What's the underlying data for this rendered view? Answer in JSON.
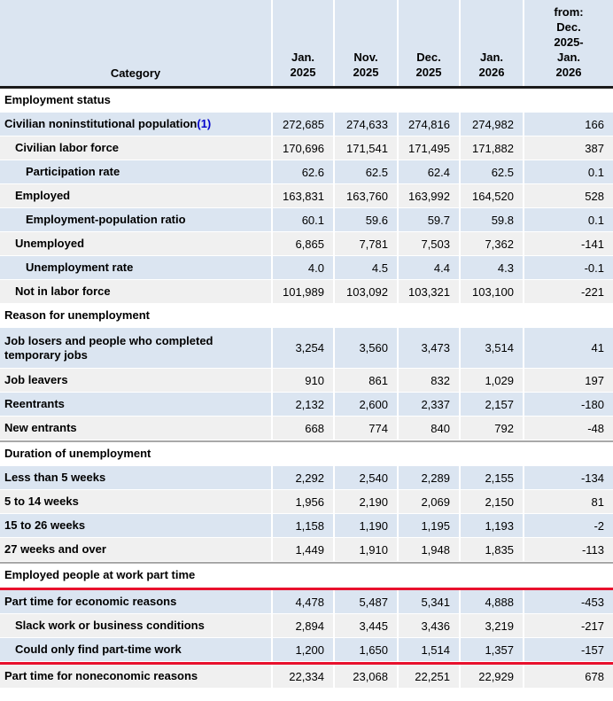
{
  "colors": {
    "row_blue": "#dbe5f1",
    "row_gray": "#f0f0f0",
    "header_bg": "#dbe5f1",
    "annotation_red": "#e8112d",
    "link_blue": "#0000cc"
  },
  "annotation": {
    "red_lines_count": 2,
    "marked_section": "Employed people at work part time"
  },
  "chart_data": {
    "type": "table",
    "header": {
      "category_label": "Category",
      "columns": [
        "Jan.\n2025",
        "Nov.\n2025",
        "Dec.\n2025",
        "Jan.\n2026",
        "from:\nDec.\n2025-\nJan.\n2026"
      ]
    },
    "rows": [
      {
        "type": "section",
        "label": "Employment status"
      },
      {
        "type": "data",
        "label": "Civilian noninstitutional population",
        "footnote": "(1)",
        "indent": 0,
        "shade": "blue",
        "values": [
          "272,685",
          "274,633",
          "274,816",
          "274,982",
          "166"
        ]
      },
      {
        "type": "data",
        "label": "Civilian labor force",
        "indent": 1,
        "shade": "gray",
        "values": [
          "170,696",
          "171,541",
          "171,495",
          "171,882",
          "387"
        ]
      },
      {
        "type": "data",
        "label": "Participation rate",
        "indent": 2,
        "shade": "blue",
        "values": [
          "62.6",
          "62.5",
          "62.4",
          "62.5",
          "0.1"
        ]
      },
      {
        "type": "data",
        "label": "Employed",
        "indent": 1,
        "shade": "gray",
        "values": [
          "163,831",
          "163,760",
          "163,992",
          "164,520",
          "528"
        ]
      },
      {
        "type": "data",
        "label": "Employment-population ratio",
        "indent": 2,
        "shade": "blue",
        "values": [
          "60.1",
          "59.6",
          "59.7",
          "59.8",
          "0.1"
        ]
      },
      {
        "type": "data",
        "label": "Unemployed",
        "indent": 1,
        "shade": "gray",
        "values": [
          "6,865",
          "7,781",
          "7,503",
          "7,362",
          "-141"
        ]
      },
      {
        "type": "data",
        "label": "Unemployment rate",
        "indent": 2,
        "shade": "blue",
        "values": [
          "4.0",
          "4.5",
          "4.4",
          "4.3",
          "-0.1"
        ]
      },
      {
        "type": "data",
        "label": "Not in labor force",
        "indent": 1,
        "shade": "gray",
        "values": [
          "101,989",
          "103,092",
          "103,321",
          "103,100",
          "-221"
        ]
      },
      {
        "type": "section",
        "label": "Reason for unemployment"
      },
      {
        "type": "data",
        "label": "Job losers and people who completed temporary jobs",
        "indent": 0,
        "shade": "blue",
        "tall": true,
        "values": [
          "3,254",
          "3,560",
          "3,473",
          "3,514",
          "41"
        ]
      },
      {
        "type": "data",
        "label": "Job leavers",
        "indent": 0,
        "shade": "gray",
        "values": [
          "910",
          "861",
          "832",
          "1,029",
          "197"
        ]
      },
      {
        "type": "data",
        "label": "Reentrants",
        "indent": 0,
        "shade": "blue",
        "values": [
          "2,132",
          "2,600",
          "2,337",
          "2,157",
          "-180"
        ]
      },
      {
        "type": "data",
        "label": "New entrants",
        "indent": 0,
        "shade": "gray",
        "values": [
          "668",
          "774",
          "840",
          "792",
          "-48"
        ]
      },
      {
        "type": "section",
        "label": "Duration of unemployment",
        "divider_above": true
      },
      {
        "type": "data",
        "label": "Less than 5 weeks",
        "indent": 0,
        "shade": "blue",
        "values": [
          "2,292",
          "2,540",
          "2,289",
          "2,155",
          "-134"
        ]
      },
      {
        "type": "data",
        "label": "5 to 14 weeks",
        "indent": 0,
        "shade": "gray",
        "values": [
          "1,956",
          "2,190",
          "2,069",
          "2,150",
          "81"
        ]
      },
      {
        "type": "data",
        "label": "15 to 26 weeks",
        "indent": 0,
        "shade": "blue",
        "values": [
          "1,158",
          "1,190",
          "1,195",
          "1,193",
          "-2"
        ]
      },
      {
        "type": "data",
        "label": "27 weeks and over",
        "indent": 0,
        "shade": "gray",
        "values": [
          "1,449",
          "1,910",
          "1,948",
          "1,835",
          "-113"
        ]
      },
      {
        "type": "section",
        "label": "Employed people at work part time",
        "divider_above": true,
        "redline_below": true
      },
      {
        "type": "data",
        "label": "Part time for economic reasons",
        "indent": 0,
        "shade": "blue",
        "values": [
          "4,478",
          "5,487",
          "5,341",
          "4,888",
          "-453"
        ]
      },
      {
        "type": "data",
        "label": "Slack work or business conditions",
        "indent": 1,
        "shade": "gray",
        "values": [
          "2,894",
          "3,445",
          "3,436",
          "3,219",
          "-217"
        ]
      },
      {
        "type": "data",
        "label": "Could only find part-time work",
        "indent": 1,
        "shade": "blue",
        "values": [
          "1,200",
          "1,650",
          "1,514",
          "1,357",
          "-157"
        ],
        "redline_below": true
      },
      {
        "type": "data",
        "label": "Part time for noneconomic reasons",
        "indent": 0,
        "shade": "gray",
        "values": [
          "22,334",
          "23,068",
          "22,251",
          "22,929",
          "678"
        ]
      }
    ]
  }
}
